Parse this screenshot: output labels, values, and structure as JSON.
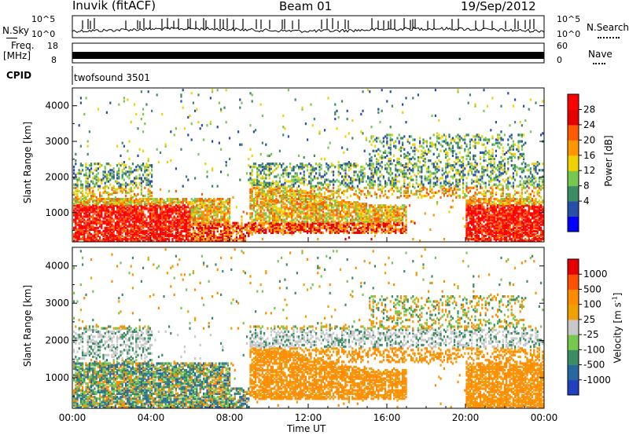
{
  "header": {
    "station": "Inuvik (fitACF)",
    "beam": "Beam 01",
    "date": "19/Sep/2012"
  },
  "top_panels": {
    "nsky_label": "N.Sky",
    "nsky_ticks": [
      "10^5",
      "10^0"
    ],
    "nsearch_label": "N.Search",
    "nsearch_ticks": [
      "10^5",
      "10^0"
    ],
    "freq_label": "Freq.",
    "freq_unit": "[MHz]",
    "freq_ticks": [
      "18",
      "8"
    ],
    "nave_label": "Nave",
    "nave_ticks": [
      "60",
      "0"
    ],
    "cpid_label": "CPID",
    "cpid_value": "twofsound 3501"
  },
  "chart_data": [
    {
      "type": "heatmap",
      "panel": "power",
      "ylabel": "Slant Range [km]",
      "yticks": [
        "4000",
        "3000",
        "2000",
        "1000"
      ],
      "ylim": [
        180,
        4500
      ],
      "xlim": [
        0,
        24
      ],
      "colorbar_label": "Power [dB]",
      "colorbar_ticks": [
        "28",
        "24",
        "20",
        "16",
        "12",
        "8",
        "4"
      ],
      "colorbar_colors": [
        "#0000ff",
        "#2850a8",
        "#3c8c64",
        "#78c850",
        "#f0d200",
        "#ff9600",
        "#ff5a00",
        "#e60000",
        "#ff0000"
      ]
    },
    {
      "type": "heatmap",
      "panel": "velocity",
      "ylabel": "Slant Range [km]",
      "yticks": [
        "4000",
        "3000",
        "2000",
        "1000"
      ],
      "ylim": [
        180,
        4500
      ],
      "xlim": [
        0,
        24
      ],
      "xlabel": "Time UT",
      "xticks": [
        "00:00",
        "04:00",
        "08:00",
        "12:00",
        "16:00",
        "20:00",
        "00:00"
      ],
      "colorbar_label": "Velocity [m s",
      "colorbar_label_sup": "-1",
      "colorbar_label_end": "]",
      "colorbar_ticks": [
        "1000",
        "500",
        "100",
        "25",
        "-25",
        "-100",
        "-500",
        "-1000"
      ],
      "colorbar_colors": [
        "#2040c0",
        "#2868a0",
        "#3c8c64",
        "#78c850",
        "#c8c8c8",
        "#f0a000",
        "#ff8c00",
        "#ff5000",
        "#e60000"
      ]
    }
  ]
}
